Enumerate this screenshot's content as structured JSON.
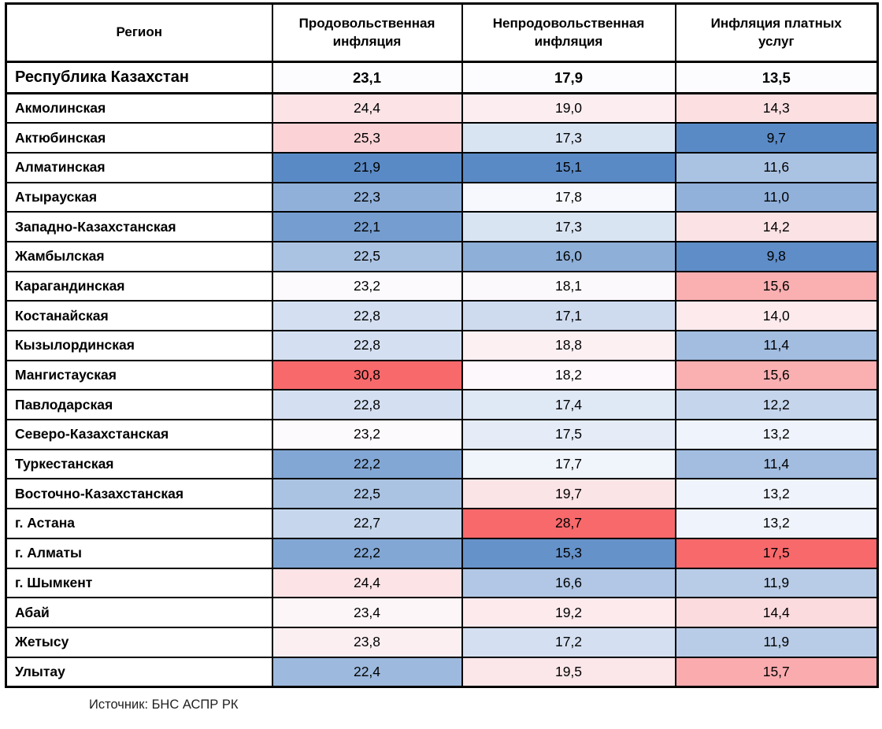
{
  "chart_data": {
    "type": "table",
    "columns": [
      "Регион",
      "Продовольственная\nинфляция",
      "Непродовольственная\nинфляция",
      "Инфляция платных\nуслуг"
    ],
    "summary": {
      "name": "Республика Казахстан",
      "values": [
        "23,1",
        "17,9",
        "13,5"
      ]
    },
    "regions": [
      {
        "name": "Акмолинская",
        "values": [
          "24,4",
          "19,0",
          "14,3"
        ]
      },
      {
        "name": "Актюбинская",
        "values": [
          "25,3",
          "17,3",
          "9,7"
        ]
      },
      {
        "name": "Алматинская",
        "values": [
          "21,9",
          "15,1",
          "11,6"
        ]
      },
      {
        "name": "Атырауская",
        "values": [
          "22,3",
          "17,8",
          "11,0"
        ]
      },
      {
        "name": "Западно-Казахстанская",
        "values": [
          "22,1",
          "17,3",
          "14,2"
        ]
      },
      {
        "name": "Жамбылская",
        "values": [
          "22,5",
          "16,0",
          "9,8"
        ]
      },
      {
        "name": "Карагандинская",
        "values": [
          "23,2",
          "18,1",
          "15,6"
        ]
      },
      {
        "name": "Костанайская",
        "values": [
          "22,8",
          "17,1",
          "14,0"
        ]
      },
      {
        "name": "Кызылординская",
        "values": [
          "22,8",
          "18,8",
          "11,4"
        ]
      },
      {
        "name": "Мангистауская",
        "values": [
          "30,8",
          "18,2",
          "15,6"
        ]
      },
      {
        "name": "Павлодарская",
        "values": [
          "22,8",
          "17,4",
          "12,2"
        ]
      },
      {
        "name": "Северо-Казахстанская",
        "values": [
          "23,2",
          "17,5",
          "13,2"
        ]
      },
      {
        "name": "Туркестанская",
        "values": [
          "22,2",
          "17,7",
          "11,4"
        ]
      },
      {
        "name": "Восточно-Казахстанская",
        "values": [
          "22,5",
          "19,7",
          "13,2"
        ]
      },
      {
        "name": "г. Астана",
        "values": [
          "22,7",
          "28,7",
          "13,2"
        ]
      },
      {
        "name": "г. Алматы",
        "values": [
          "22,2",
          "15,3",
          "17,5"
        ]
      },
      {
        "name": "г. Шымкент",
        "values": [
          "24,4",
          "16,6",
          "11,9"
        ]
      },
      {
        "name": "Абай",
        "values": [
          "23,4",
          "19,2",
          "14,4"
        ]
      },
      {
        "name": "Жетысу",
        "values": [
          "23,8",
          "17,2",
          "11,9"
        ]
      },
      {
        "name": "Улытау",
        "values": [
          "22,4",
          "19,5",
          "15,7"
        ]
      }
    ],
    "color_scale": {
      "type": "3-color",
      "min_color": "#5A8AC6",
      "mid_color": "#FCFCFF",
      "max_color": "#F8696B",
      "midpoint_rule": "republic value per column"
    },
    "source": "Источник: БНС АСПР РК"
  },
  "colors": {
    "border": "#000000",
    "background": "#FFFFFF"
  }
}
